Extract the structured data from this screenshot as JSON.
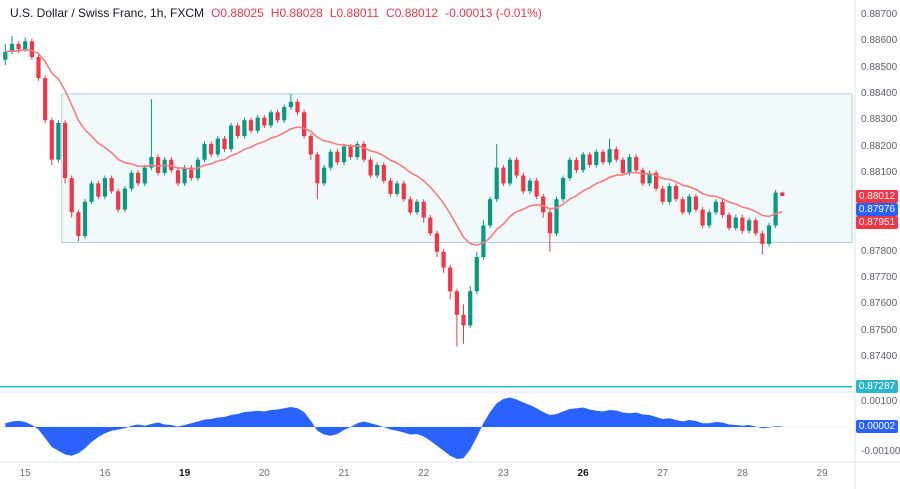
{
  "window": {
    "app": "trading-chart",
    "symbol": "USDCHF"
  },
  "legend": {
    "symbol_title": "U.S. Dollar / Swiss Franc, 1h, FXCM",
    "ohlc": [
      {
        "label": "O",
        "value": "0.88025"
      },
      {
        "label": "H",
        "value": "0.88028"
      },
      {
        "label": "L",
        "value": "0.88011"
      },
      {
        "label": "C",
        "value": "0.88012"
      }
    ],
    "change": "-0.00013 (-0.01%)"
  },
  "colors": {
    "up": "#089981",
    "down": "#f23645",
    "ma": "#f77c80",
    "oscillator": "#2962ff",
    "level_line": "#2cb5c8",
    "zone_fill": "rgba(156,211,223,0.14)",
    "zone_border": "rgba(86,160,180,0.45)",
    "axis_text": "#5d606b",
    "separator": "#e0e3eb",
    "badge_blue": "#2962ff",
    "badge_red": "#f23645",
    "badge_teal": "#2cb5c8"
  },
  "price_axis": {
    "ticks": [
      "0.88700",
      "0.88600",
      "0.88500",
      "0.88400",
      "0.88300",
      "0.88200",
      "0.88100",
      "0.88000",
      "0.87900",
      "0.87800",
      "0.87700",
      "0.87600",
      "0.87500",
      "0.87400"
    ],
    "badges": [
      {
        "value": "0.88012",
        "color": "#f23645"
      },
      {
        "value": "0.87976",
        "color": "#2962ff"
      },
      {
        "value": "0.87951",
        "color": "#f23645"
      },
      {
        "value": "0.87287",
        "color": "#2cb5c8"
      }
    ]
  },
  "indicator_axis": {
    "labels": [
      {
        "value": "0.00100"
      },
      {
        "value": "-0.00100"
      }
    ],
    "badge": {
      "value": "0.00002",
      "color": "#2962ff"
    }
  },
  "time_axis": {
    "labels": [
      {
        "text": "15",
        "slot": 3,
        "bold": false
      },
      {
        "text": "16",
        "slot": 15,
        "bold": false
      },
      {
        "text": "19",
        "slot": 27,
        "bold": true
      },
      {
        "text": "20",
        "slot": 39,
        "bold": false
      },
      {
        "text": "21",
        "slot": 51,
        "bold": false
      },
      {
        "text": "22",
        "slot": 63,
        "bold": false
      },
      {
        "text": "23",
        "slot": 75,
        "bold": false
      },
      {
        "text": "26",
        "slot": 87,
        "bold": true
      },
      {
        "text": "27",
        "slot": 99,
        "bold": false
      },
      {
        "text": "28",
        "slot": 111,
        "bold": false
      },
      {
        "text": "29",
        "slot": 123,
        "bold": false
      }
    ]
  },
  "chart_data": {
    "type": "candlestick",
    "title": "U.S. Dollar / Swiss Franc",
    "timeframe": "1h",
    "source": "FXCM",
    "last_bar": {
      "open": 0.88025,
      "high": 0.88028,
      "low": 0.88011,
      "close": 0.88012,
      "change": -0.00013,
      "change_pct": -0.01
    },
    "y_range": [
      0.874,
      0.887
    ],
    "x_slots": 128,
    "zone": {
      "top": 0.884,
      "bottom": 0.87835,
      "start_slot": 9
    },
    "level_line": {
      "value": 0.87287
    },
    "ma_line": {
      "period": 16,
      "color": "#f77c80"
    },
    "candles": [
      [
        0.8853,
        0.8859,
        0.8851,
        0.8856
      ],
      [
        0.8856,
        0.8862,
        0.8855,
        0.8859
      ],
      [
        0.8859,
        0.886,
        0.88555,
        0.8857
      ],
      [
        0.8857,
        0.88615,
        0.8856,
        0.886
      ],
      [
        0.886,
        0.8861,
        0.8853,
        0.8854
      ],
      [
        0.8854,
        0.8855,
        0.8845,
        0.8846
      ],
      [
        0.8846,
        0.8847,
        0.8829,
        0.883
      ],
      [
        0.883,
        0.8831,
        0.8813,
        0.8815
      ],
      [
        0.8815,
        0.883,
        0.8814,
        0.8829
      ],
      [
        0.8829,
        0.883,
        0.8806,
        0.8808
      ],
      [
        0.8808,
        0.8809,
        0.8793,
        0.8795
      ],
      [
        0.8795,
        0.8796,
        0.8784,
        0.8786
      ],
      [
        0.8786,
        0.88,
        0.8785,
        0.8799
      ],
      [
        0.8799,
        0.8807,
        0.8798,
        0.8806
      ],
      [
        0.8806,
        0.8807,
        0.88,
        0.8801
      ],
      [
        0.8801,
        0.8809,
        0.88,
        0.8808
      ],
      [
        0.8808,
        0.8809,
        0.8802,
        0.8803
      ],
      [
        0.8803,
        0.8804,
        0.8795,
        0.8796
      ],
      [
        0.8796,
        0.8805,
        0.8795,
        0.8804
      ],
      [
        0.8804,
        0.8811,
        0.8803,
        0.881
      ],
      [
        0.881,
        0.8811,
        0.8805,
        0.8806
      ],
      [
        0.8806,
        0.8813,
        0.8805,
        0.8812
      ],
      [
        0.8812,
        0.8838,
        0.8811,
        0.8816
      ],
      [
        0.8816,
        0.8817,
        0.8809,
        0.881
      ],
      [
        0.881,
        0.8816,
        0.8809,
        0.8815
      ],
      [
        0.8815,
        0.8816,
        0.881,
        0.8811
      ],
      [
        0.8811,
        0.8812,
        0.8805,
        0.8806
      ],
      [
        0.8806,
        0.8813,
        0.8805,
        0.8812
      ],
      [
        0.8812,
        0.8813,
        0.8807,
        0.8808
      ],
      [
        0.8808,
        0.8816,
        0.8807,
        0.8815
      ],
      [
        0.8815,
        0.8822,
        0.8814,
        0.8821
      ],
      [
        0.8821,
        0.8822,
        0.8816,
        0.8817
      ],
      [
        0.8817,
        0.8824,
        0.8816,
        0.8823
      ],
      [
        0.8823,
        0.8824,
        0.8818,
        0.8819
      ],
      [
        0.8819,
        0.8829,
        0.8818,
        0.8828
      ],
      [
        0.8828,
        0.8829,
        0.8823,
        0.8824
      ],
      [
        0.8824,
        0.8831,
        0.8823,
        0.883
      ],
      [
        0.883,
        0.8831,
        0.8825,
        0.8826
      ],
      [
        0.8826,
        0.8832,
        0.8825,
        0.8831
      ],
      [
        0.8831,
        0.8832,
        0.8827,
        0.8828
      ],
      [
        0.8828,
        0.8834,
        0.8827,
        0.8833
      ],
      [
        0.8833,
        0.8834,
        0.8829,
        0.883
      ],
      [
        0.883,
        0.8836,
        0.8829,
        0.8835
      ],
      [
        0.8835,
        0.884,
        0.8834,
        0.8837
      ],
      [
        0.8837,
        0.8838,
        0.8832,
        0.8833
      ],
      [
        0.8833,
        0.8834,
        0.8823,
        0.8824
      ],
      [
        0.8824,
        0.8825,
        0.8815,
        0.8817
      ],
      [
        0.8817,
        0.8818,
        0.88,
        0.8806
      ],
      [
        0.8806,
        0.8813,
        0.8805,
        0.8812
      ],
      [
        0.8812,
        0.8819,
        0.8811,
        0.8818
      ],
      [
        0.8818,
        0.8819,
        0.8813,
        0.8814
      ],
      [
        0.8814,
        0.8821,
        0.8813,
        0.882
      ],
      [
        0.882,
        0.8821,
        0.8815,
        0.8816
      ],
      [
        0.8816,
        0.8822,
        0.8815,
        0.8821
      ],
      [
        0.8821,
        0.8822,
        0.8814,
        0.8815
      ],
      [
        0.8815,
        0.8816,
        0.8808,
        0.8809
      ],
      [
        0.8809,
        0.8814,
        0.8808,
        0.8813
      ],
      [
        0.8813,
        0.8814,
        0.8806,
        0.8807
      ],
      [
        0.8807,
        0.8808,
        0.8801,
        0.8802
      ],
      [
        0.8802,
        0.8807,
        0.8801,
        0.8806
      ],
      [
        0.8806,
        0.8807,
        0.8799,
        0.88
      ],
      [
        0.88,
        0.8801,
        0.8794,
        0.8795
      ],
      [
        0.8795,
        0.88,
        0.8794,
        0.8799
      ],
      [
        0.8799,
        0.88,
        0.8791,
        0.8793
      ],
      [
        0.8793,
        0.8794,
        0.8786,
        0.8787
      ],
      [
        0.8787,
        0.8788,
        0.8778,
        0.878
      ],
      [
        0.878,
        0.8781,
        0.8772,
        0.8774
      ],
      [
        0.8774,
        0.8775,
        0.8762,
        0.8765
      ],
      [
        0.8765,
        0.8766,
        0.8744,
        0.8756
      ],
      [
        0.8756,
        0.876,
        0.8745,
        0.8752
      ],
      [
        0.8752,
        0.8767,
        0.8751,
        0.8765
      ],
      [
        0.8765,
        0.878,
        0.8764,
        0.8778
      ],
      [
        0.8778,
        0.8792,
        0.8777,
        0.879
      ],
      [
        0.879,
        0.8801,
        0.8789,
        0.88
      ],
      [
        0.88,
        0.8821,
        0.8799,
        0.8812
      ],
      [
        0.8812,
        0.8813,
        0.8805,
        0.8806
      ],
      [
        0.8806,
        0.8816,
        0.8805,
        0.8815
      ],
      [
        0.8815,
        0.8816,
        0.8808,
        0.8809
      ],
      [
        0.8809,
        0.881,
        0.8802,
        0.8803
      ],
      [
        0.8803,
        0.8808,
        0.8802,
        0.8807
      ],
      [
        0.8807,
        0.8808,
        0.88,
        0.8801
      ],
      [
        0.8801,
        0.8802,
        0.8793,
        0.8795
      ],
      [
        0.8795,
        0.8796,
        0.878,
        0.8787
      ],
      [
        0.8787,
        0.8801,
        0.8786,
        0.88
      ],
      [
        0.88,
        0.8809,
        0.8799,
        0.8808
      ],
      [
        0.8808,
        0.8816,
        0.8807,
        0.8815
      ],
      [
        0.8815,
        0.8816,
        0.881,
        0.8811
      ],
      [
        0.8811,
        0.8818,
        0.881,
        0.8817
      ],
      [
        0.8817,
        0.8818,
        0.8812,
        0.8813
      ],
      [
        0.8813,
        0.8819,
        0.8812,
        0.8818
      ],
      [
        0.8818,
        0.8819,
        0.8813,
        0.8814
      ],
      [
        0.8814,
        0.8823,
        0.8813,
        0.8819
      ],
      [
        0.8819,
        0.882,
        0.8814,
        0.8815
      ],
      [
        0.8815,
        0.8816,
        0.8809,
        0.881
      ],
      [
        0.881,
        0.8817,
        0.8809,
        0.8816
      ],
      [
        0.8816,
        0.8817,
        0.881,
        0.8811
      ],
      [
        0.8811,
        0.8812,
        0.8805,
        0.8806
      ],
      [
        0.8806,
        0.8811,
        0.8805,
        0.881
      ],
      [
        0.881,
        0.8811,
        0.8803,
        0.8804
      ],
      [
        0.8804,
        0.8805,
        0.8798,
        0.8799
      ],
      [
        0.8799,
        0.8806,
        0.8798,
        0.8805
      ],
      [
        0.8805,
        0.8806,
        0.8799,
        0.88
      ],
      [
        0.88,
        0.8801,
        0.8794,
        0.8795
      ],
      [
        0.8795,
        0.8802,
        0.8794,
        0.8801
      ],
      [
        0.8801,
        0.8802,
        0.8795,
        0.8796
      ],
      [
        0.8796,
        0.8797,
        0.8789,
        0.879
      ],
      [
        0.879,
        0.8796,
        0.8789,
        0.8795
      ],
      [
        0.8795,
        0.88,
        0.8794,
        0.8799
      ],
      [
        0.8799,
        0.88,
        0.8793,
        0.8794
      ],
      [
        0.8794,
        0.8795,
        0.8788,
        0.8789
      ],
      [
        0.8789,
        0.8794,
        0.8788,
        0.8793
      ],
      [
        0.8793,
        0.8794,
        0.8787,
        0.8788
      ],
      [
        0.8788,
        0.8793,
        0.8787,
        0.8792
      ],
      [
        0.8792,
        0.8793,
        0.8786,
        0.8787
      ],
      [
        0.8787,
        0.8788,
        0.8779,
        0.8783
      ],
      [
        0.8783,
        0.8791,
        0.8782,
        0.879
      ],
      [
        0.879,
        0.88035,
        0.8789,
        0.88025
      ],
      [
        0.88025,
        0.88028,
        0.88011,
        0.88012
      ]
    ],
    "oscillator": {
      "type": "area",
      "color": "#2962ff",
      "last_value": 2e-05,
      "y_ticks": [
        0.001,
        -0.001
      ],
      "values": [
        0.00015,
        0.00022,
        0.00025,
        0.0002,
        8e-05,
        -0.0001,
        -0.00045,
        -0.0008,
        -0.00095,
        -0.0011,
        -0.00115,
        -0.00105,
        -0.00085,
        -0.0006,
        -0.0004,
        -0.00025,
        -0.00015,
        -0.0001,
        -5e-05,
        5e-05,
        0.0001,
        5e-05,
        0.00012,
        0.00018,
        0.0001,
        8e-05,
        2e-05,
        8e-05,
        0.00015,
        0.00022,
        0.0003,
        0.00032,
        0.00038,
        0.0004,
        0.00048,
        0.00052,
        0.0006,
        0.00062,
        0.00065,
        0.00062,
        0.00068,
        0.0007,
        0.00075,
        0.0008,
        0.00075,
        0.0006,
        0.00025,
        -0.00015,
        -0.0003,
        -0.00035,
        -0.00028,
        -0.00012,
        0.0,
        0.00015,
        0.00022,
        0.00015,
        8e-05,
        0.0,
        -0.0001,
        -0.00015,
        -0.00022,
        -0.0003,
        -0.00028,
        -0.00038,
        -0.00055,
        -0.00075,
        -0.00095,
        -0.00115,
        -0.00128,
        -0.00125,
        -0.0009,
        -0.0004,
        0.00015,
        0.0006,
        0.00095,
        0.00112,
        0.00118,
        0.0011,
        0.00098,
        0.00088,
        0.00075,
        0.0006,
        0.00048,
        0.00052,
        0.00062,
        0.00072,
        0.00075,
        0.00078,
        0.0007,
        0.00065,
        0.00062,
        0.00068,
        0.00066,
        0.00058,
        0.00055,
        0.00058,
        0.0005,
        0.00048,
        0.0004,
        0.00032,
        0.00035,
        0.00028,
        0.00022,
        0.00028,
        0.00024,
        0.00015,
        0.00015,
        0.0002,
        0.00018,
        0.0001,
        8e-05,
        5e-05,
        8e-05,
        2e-05,
        -5e-05,
        -2e-05,
        3e-05,
        2e-05
      ]
    }
  }
}
